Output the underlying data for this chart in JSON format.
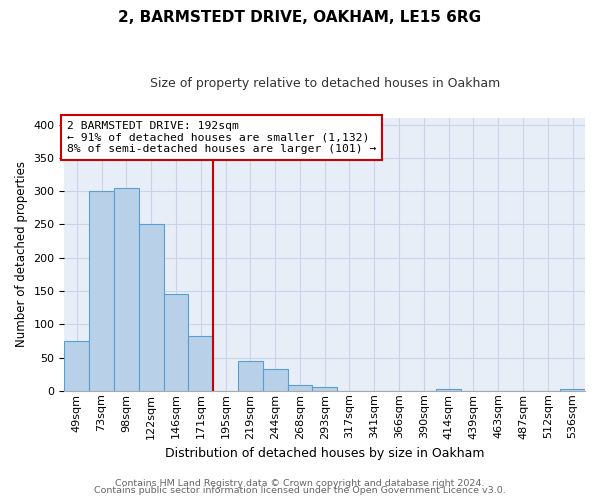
{
  "title": "2, BARMSTEDT DRIVE, OAKHAM, LE15 6RG",
  "subtitle": "Size of property relative to detached houses in Oakham",
  "xlabel": "Distribution of detached houses by size in Oakham",
  "ylabel": "Number of detached properties",
  "bar_labels": [
    "49sqm",
    "73sqm",
    "98sqm",
    "122sqm",
    "146sqm",
    "171sqm",
    "195sqm",
    "219sqm",
    "244sqm",
    "268sqm",
    "293sqm",
    "317sqm",
    "341sqm",
    "366sqm",
    "390sqm",
    "414sqm",
    "439sqm",
    "463sqm",
    "487sqm",
    "512sqm",
    "536sqm"
  ],
  "bar_values": [
    75,
    300,
    305,
    250,
    145,
    83,
    0,
    44,
    32,
    9,
    6,
    0,
    0,
    0,
    0,
    2,
    0,
    0,
    0,
    0,
    2
  ],
  "bar_color": "#b8d0e8",
  "bar_edge_color": "#5a9fd4",
  "vline_x_index": 6,
  "vline_color": "#cc0000",
  "annotation_text_line1": "2 BARMSTEDT DRIVE: 192sqm",
  "annotation_text_line2": "← 91% of detached houses are smaller (1,132)",
  "annotation_text_line3": "8% of semi-detached houses are larger (101) →",
  "annotation_box_edgecolor": "#cc0000",
  "ylim": [
    0,
    410
  ],
  "yticks": [
    0,
    50,
    100,
    150,
    200,
    250,
    300,
    350,
    400
  ],
  "footer_line1": "Contains HM Land Registry data © Crown copyright and database right 2024.",
  "footer_line2": "Contains public sector information licensed under the Open Government Licence v3.0.",
  "bg_color": "#ffffff",
  "plot_bg_color": "#e8eef8",
  "grid_color": "#c8d4e8",
  "title_fontsize": 11,
  "subtitle_fontsize": 9,
  "ylabel_fontsize": 8.5,
  "xlabel_fontsize": 9,
  "tick_fontsize": 8,
  "annotation_fontsize": 8.2,
  "footer_fontsize": 6.8
}
